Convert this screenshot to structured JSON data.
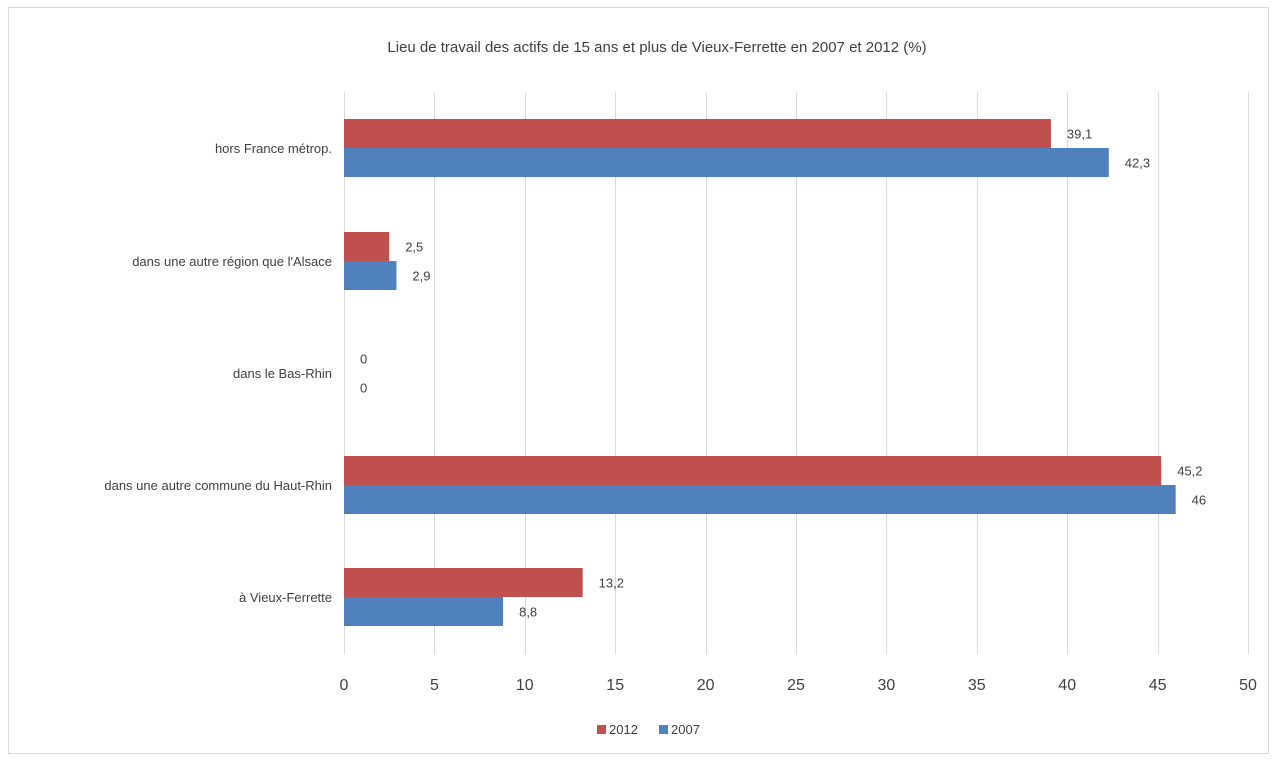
{
  "chart_data": {
    "type": "bar",
    "orientation": "horizontal",
    "title": "Lieu de travail des actifs de 15 ans et plus de Vieux-Ferrette en 2007 et 2012  (%)",
    "categories": [
      "hors France métrop.",
      "dans une autre région que l'Alsace",
      "dans le Bas-Rhin",
      "dans une autre commune du Haut-Rhin",
      "à Vieux-Ferrette"
    ],
    "series": [
      {
        "name": "2012",
        "color": "#c0504d",
        "values": [
          39.1,
          2.5,
          0,
          45.2,
          13.2
        ],
        "labels": [
          "39,1",
          "2,5",
          "0",
          "45,2",
          "13,2"
        ]
      },
      {
        "name": "2007",
        "color": "#4f81bd",
        "values": [
          42.3,
          2.9,
          0,
          46,
          8.8
        ],
        "labels": [
          "42,3",
          "2,9",
          "0",
          "46",
          "8,8"
        ]
      }
    ],
    "xlim": [
      0,
      50
    ],
    "xticks": [
      0,
      5,
      10,
      15,
      20,
      25,
      30,
      35,
      40,
      45,
      50
    ],
    "xtick_labels": [
      "0",
      "5",
      "10",
      "15",
      "20",
      "25",
      "30",
      "35",
      "40",
      "45",
      "50"
    ],
    "grid": true,
    "legend_position": "bottom"
  }
}
